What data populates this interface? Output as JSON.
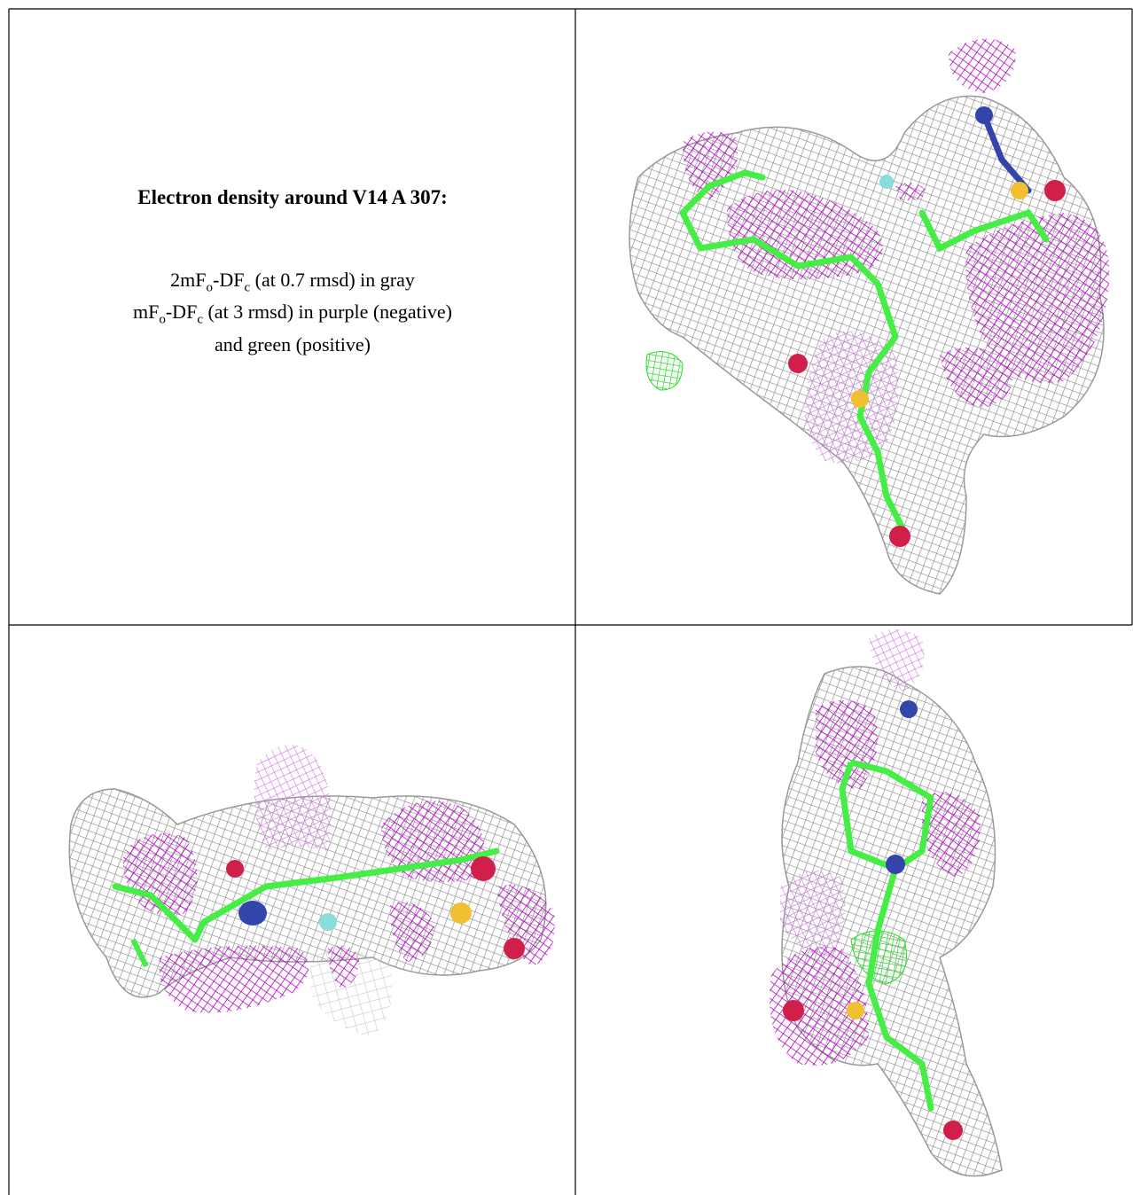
{
  "figure": {
    "title": "Electron density around V14 A 307:",
    "lines": [
      [
        "2mF",
        "o",
        "-DF",
        "c",
        " (at 0.7 rmsd) in gray"
      ],
      [
        "mF",
        "o",
        "-DF",
        "c",
        " (at 3 rmsd) in purple (negative)"
      ],
      [
        "and green (positive)"
      ]
    ]
  }
}
